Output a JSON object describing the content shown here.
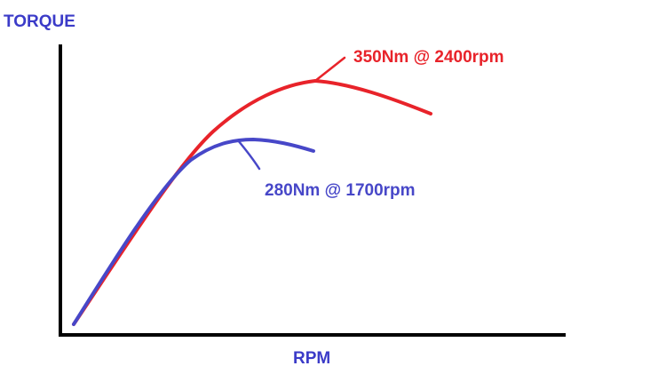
{
  "chart_data": {
    "type": "line",
    "xlabel": "RPM",
    "ylabel": "TORQUE",
    "label_color": "#3b3bc8",
    "grid": false,
    "series": [
      {
        "color": "#e8232a",
        "points": [
          [
            0,
            0
          ],
          [
            500,
            100
          ],
          [
            1000,
            200
          ],
          [
            1500,
            280
          ],
          [
            2000,
            335
          ],
          [
            2400,
            350
          ],
          [
            2800,
            340
          ],
          [
            3200,
            315
          ]
        ],
        "annotation": "350Nm @ 2400rpm"
      },
      {
        "color": "#4747c8",
        "points": [
          [
            0,
            0
          ],
          [
            500,
            95
          ],
          [
            1000,
            190
          ],
          [
            1400,
            255
          ],
          [
            1700,
            280
          ],
          [
            2000,
            278
          ],
          [
            2300,
            265
          ]
        ],
        "annotation": "280Nm @ 1700rpm"
      }
    ]
  }
}
